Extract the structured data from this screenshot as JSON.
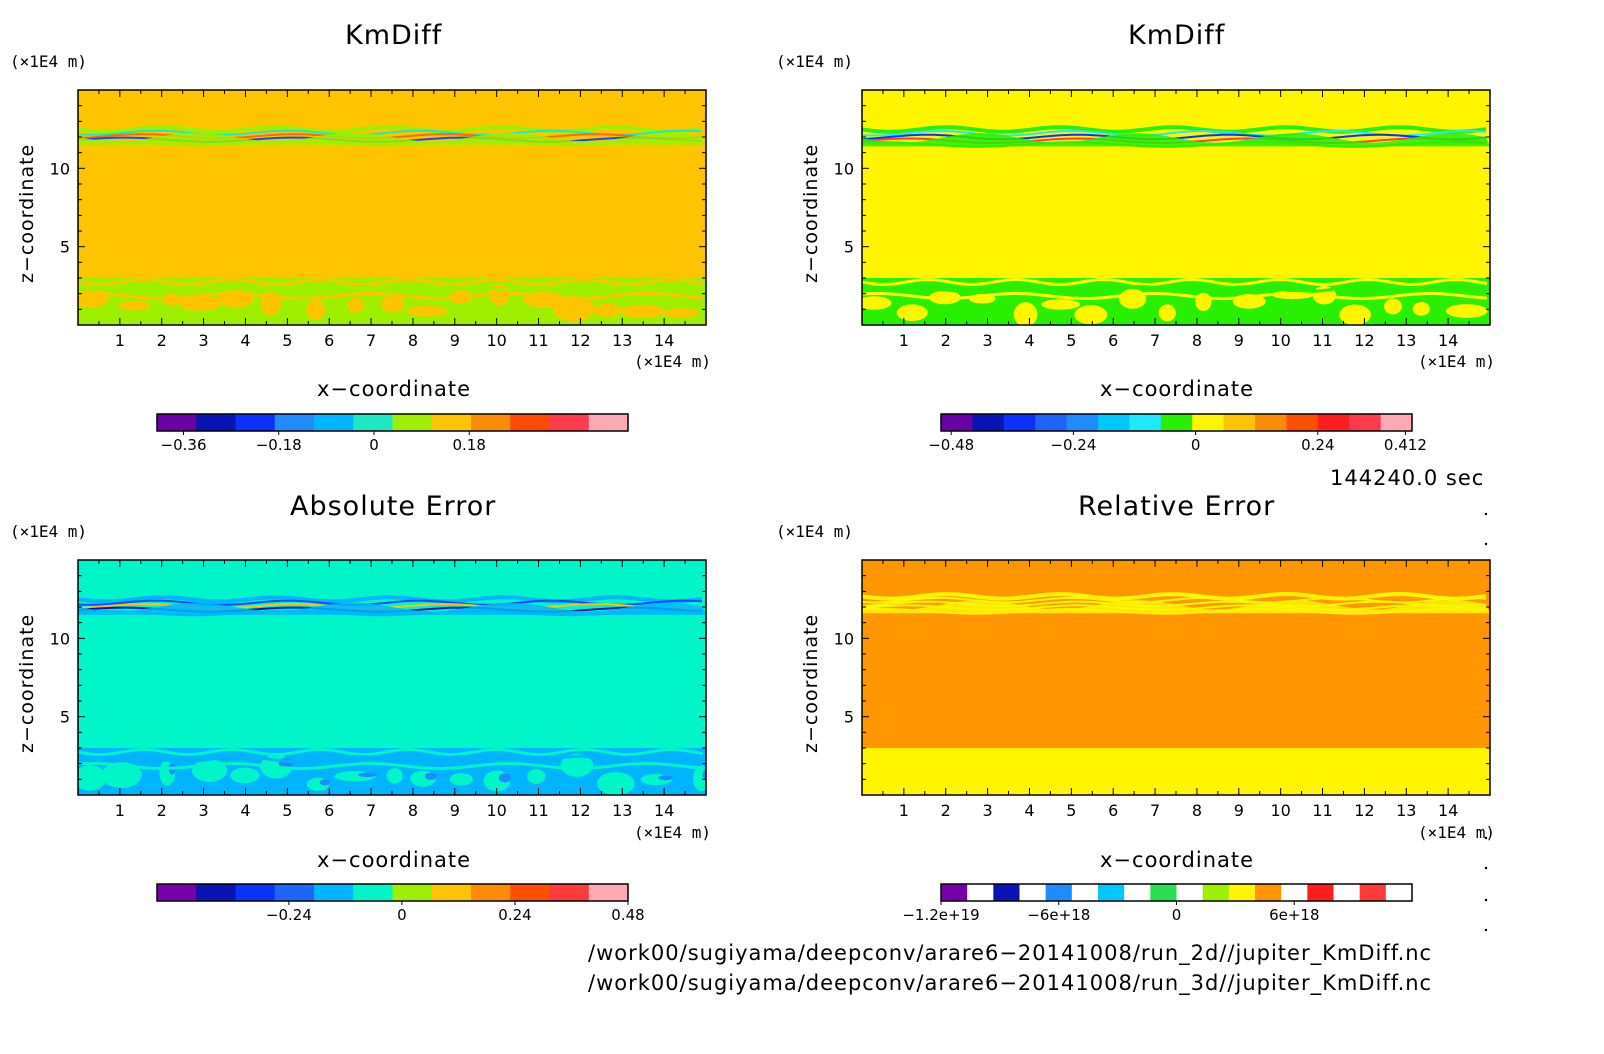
{
  "chart_data": [
    {
      "type": "heatmap",
      "title": "KmDiff",
      "xlabel": "x−coordinate",
      "ylabel": "z−coordinate",
      "x_unit": "(×1E4 m)",
      "y_unit": "(×1E4 m)",
      "xlim": [
        0,
        15
      ],
      "ylim": [
        0,
        15
      ],
      "x_ticks": [
        1,
        2,
        3,
        4,
        5,
        6,
        7,
        8,
        9,
        10,
        11,
        12,
        13,
        14
      ],
      "y_ticks": [
        5,
        10
      ],
      "background_color": "#ffc400",
      "bands": [
        {
          "z_range": [
            11.5,
            12.6
          ],
          "colors": [
            "#9ef000",
            "#1fe8c4",
            "#ff6a00",
            "#1e46ff"
          ]
        },
        {
          "z_range": [
            0,
            3.0
          ],
          "colors": [
            "#9ef000",
            "#ffc400"
          ]
        }
      ],
      "colorbar": {
        "colors": [
          "#6a00a8",
          "#0a14b4",
          "#0a32ff",
          "#1e8cff",
          "#00b4ff",
          "#1fe8c4",
          "#9ef000",
          "#ffc400",
          "#ff8c00",
          "#ff4a00",
          "#ff3a4a",
          "#ffaab4"
        ],
        "tick_values": [
          -0.36,
          -0.18,
          0,
          0.18
        ],
        "tick_labels": [
          "−0.36",
          "−0.18",
          "0",
          "0.18"
        ]
      }
    },
    {
      "type": "heatmap",
      "title": "KmDiff",
      "xlabel": "x−coordinate",
      "ylabel": "z−coordinate",
      "x_unit": "(×1E4 m)",
      "y_unit": "(×1E4 m)",
      "xlim": [
        0,
        15
      ],
      "ylim": [
        0,
        15
      ],
      "x_ticks": [
        1,
        2,
        3,
        4,
        5,
        6,
        7,
        8,
        9,
        10,
        11,
        12,
        13,
        14
      ],
      "y_ticks": [
        5,
        10
      ],
      "background_color": "#fff500",
      "bands": [
        {
          "z_range": [
            11.4,
            12.6
          ],
          "colors": [
            "#28f000",
            "#1fe8ff",
            "#0a32ff",
            "#ff3a4a"
          ]
        },
        {
          "z_range": [
            0,
            3.0
          ],
          "colors": [
            "#28f000",
            "#fff500"
          ]
        }
      ],
      "colorbar": {
        "colors": [
          "#6a00a8",
          "#0a14b4",
          "#0a32ff",
          "#1e64ff",
          "#1e8cff",
          "#00c8ff",
          "#1fe8ff",
          "#28f000",
          "#fff500",
          "#ffc400",
          "#ff8c00",
          "#ff5000",
          "#ff1e1e",
          "#ff3a4a",
          "#ffaab4"
        ],
        "tick_values": [
          -0.48,
          -0.24,
          0,
          0.24,
          0.412
        ],
        "tick_labels": [
          "−0.48",
          "−0.24",
          "0",
          "0.24",
          "0.412"
        ]
      }
    },
    {
      "type": "heatmap",
      "title": "Absolute Error",
      "xlabel": "x−coordinate",
      "ylabel": "z−coordinate",
      "x_unit": "(×1E4 m)",
      "y_unit": "(×1E4 m)",
      "xlim": [
        0,
        15
      ],
      "ylim": [
        0,
        15
      ],
      "x_ticks": [
        1,
        2,
        3,
        4,
        5,
        6,
        7,
        8,
        9,
        10,
        11,
        12,
        13,
        14
      ],
      "y_ticks": [
        5,
        10
      ],
      "background_color": "#00f5c8",
      "bands": [
        {
          "z_range": [
            11.5,
            12.6
          ],
          "colors": [
            "#00b4ff",
            "#1e46ff",
            "#ffc400",
            "#0a14b4"
          ]
        },
        {
          "z_range": [
            0,
            3.0
          ],
          "colors": [
            "#00b4ff",
            "#1e8cff",
            "#00f5c8"
          ]
        }
      ],
      "colorbar": {
        "colors": [
          "#7800a8",
          "#0a14b4",
          "#0a32ff",
          "#1e64ff",
          "#00b4ff",
          "#00f5c8",
          "#9ef000",
          "#ffc400",
          "#ff8c00",
          "#ff5000",
          "#ff3a3a",
          "#ffaab4"
        ],
        "tick_values": [
          -0.24,
          0,
          0.24,
          0.48
        ],
        "tick_labels": [
          "−0.24",
          "0",
          "0.24",
          "0.48"
        ]
      }
    },
    {
      "type": "heatmap",
      "title": "Relative Error",
      "xlabel": "x−coordinate",
      "ylabel": "z−coordinate",
      "x_unit": "(×1E4 m)",
      "y_unit": "(×1E4 m)",
      "xlim": [
        0,
        15
      ],
      "ylim": [
        0,
        15
      ],
      "x_ticks": [
        1,
        2,
        3,
        4,
        5,
        6,
        7,
        8,
        9,
        10,
        11,
        12,
        13,
        14
      ],
      "y_ticks": [
        5,
        10
      ],
      "background_color": "#ff9600",
      "bands": [
        {
          "z_range": [
            11.6,
            12.8
          ],
          "colors": [
            "#fff500"
          ]
        },
        {
          "z_range": [
            0,
            3.0
          ],
          "colors": [
            "#fff500"
          ]
        }
      ],
      "colorbar": {
        "colors": [
          "#7800a8",
          "#ffffff",
          "#0a14b4",
          "#ffffff",
          "#1e8cff",
          "#ffffff",
          "#00c8ff",
          "#ffffff",
          "#28e050",
          "#ffffff",
          "#9ef000",
          "#fff500",
          "#ff9600",
          "#ffffff",
          "#ff1e1e",
          "#ffffff",
          "#ff3a3a",
          "#ffffff"
        ],
        "tick_values": [
          -1.2e+19,
          -6e+18,
          0,
          6e+18
        ],
        "tick_labels": [
          "−1.2e+19",
          "−6e+18",
          "0",
          "6e+18"
        ]
      }
    }
  ],
  "annotations": {
    "time": "144240.0 sec",
    "path_2d": "/work00/sugiyama/deepconv/arare6−20141008/run_2d//jupiter_KmDiff.nc",
    "path_3d": "/work00/sugiyama/deepconv/arare6−20141008/run_3d//jupiter_KmDiff.nc"
  }
}
